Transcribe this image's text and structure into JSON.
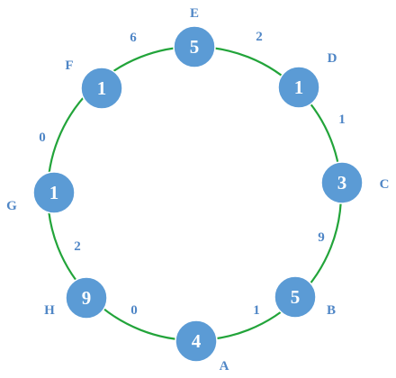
{
  "diagram": {
    "colors": {
      "ring": "#22a43a",
      "node_fill": "#5b9bd5",
      "node_stroke": "#ffffff",
      "text": "#4f86c6"
    },
    "nodes": {
      "E": {
        "label": "E",
        "value": "5"
      },
      "D": {
        "label": "D",
        "value": "1"
      },
      "C": {
        "label": "C",
        "value": "3"
      },
      "B": {
        "label": "B",
        "value": "5"
      },
      "A": {
        "label": "A",
        "value": "4"
      },
      "H": {
        "label": "H",
        "value": "9"
      },
      "G": {
        "label": "G",
        "value": "1"
      },
      "F": {
        "label": "F",
        "value": "1"
      }
    },
    "edges": {
      "E_D": "2",
      "D_C": "1",
      "C_B": "9",
      "B_A": "1",
      "A_H": "0",
      "H_G": "2",
      "G_F": "0",
      "F_E": "6"
    }
  }
}
